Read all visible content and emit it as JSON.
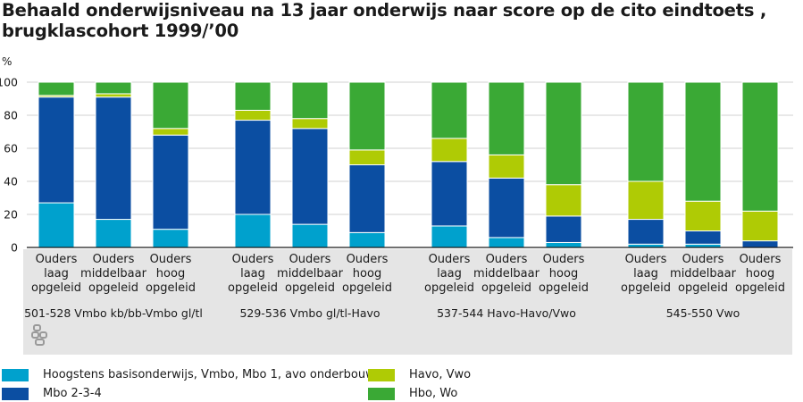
{
  "title_line1": "Behaald onderwijsniveau na 13 jaar onderwijs naar score op de cito eindtoets ,",
  "title_line2": "brugklascohort 1999/’00",
  "colors": {
    "basis": "#00a1cd",
    "mbo": "#0b4ea2",
    "havo": "#afcb05",
    "hbo": "#3aa935",
    "panel": "#e5e5e5"
  },
  "chart_data": {
    "type": "bar",
    "stacked": true,
    "ylabel": "%",
    "ylim": [
      0,
      100
    ],
    "yticks": [
      0,
      20,
      40,
      60,
      80,
      100
    ],
    "grid": true,
    "legend_position": "bottom",
    "groups": [
      {
        "label": "501-528 Vmbo kb/bb-Vmbo gl/tl",
        "categories": [
          "Ouders laag opgeleid",
          "Ouders middelbaar opgeleid",
          "Ouders hoog opgeleid"
        ],
        "stacks": [
          [
            27,
            64,
            1,
            8
          ],
          [
            17,
            74,
            2,
            7
          ],
          [
            11,
            57,
            4,
            28
          ]
        ]
      },
      {
        "label": "529-536 Vmbo gl/tl-Havo",
        "categories": [
          "Ouders laag opgeleid",
          "Ouders middelbaar opgeleid",
          "Ouders hoog opgeleid"
        ],
        "stacks": [
          [
            20,
            57,
            6,
            17
          ],
          [
            14,
            58,
            6,
            22
          ],
          [
            9,
            41,
            9,
            41
          ]
        ]
      },
      {
        "label": "537-544 Havo-Havo/Vwo",
        "categories": [
          "Ouders laag opgeleid",
          "Ouders middelbaar opgeleid",
          "Ouders hoog opgeleid"
        ],
        "stacks": [
          [
            13,
            39,
            14,
            34
          ],
          [
            6,
            36,
            14,
            44
          ],
          [
            3,
            16,
            19,
            62
          ]
        ]
      },
      {
        "label": "545-550 Vwo",
        "categories": [
          "Ouders laag opgeleid",
          "Ouders middelbaar opgeleid",
          "Ouders hoog opgeleid"
        ],
        "stacks": [
          [
            2,
            15,
            23,
            60
          ],
          [
            2,
            8,
            18,
            72
          ],
          [
            0,
            4,
            18,
            78
          ]
        ]
      }
    ],
    "series": [
      {
        "name": "Hoogstens basisonderwijs, Vmbo, Mbo 1, avo onderbouw",
        "color_key": "basis"
      },
      {
        "name": "Mbo 2-3-4",
        "color_key": "mbo"
      },
      {
        "name": "Havo, Vwo",
        "color_key": "havo"
      },
      {
        "name": "Hbo, Wo",
        "color_key": "hbo"
      }
    ]
  },
  "legend": {
    "items": [
      {
        "label": "Hoogstens basisonderwijs, Vmbo, Mbo 1, avo onderbouw",
        "color_key": "basis"
      },
      {
        "label": "Mbo 2-3-4",
        "color_key": "mbo"
      },
      {
        "label": "Havo, Vwo",
        "color_key": "havo"
      },
      {
        "label": "Hbo, Wo",
        "color_key": "hbo"
      }
    ]
  },
  "logo": {
    "name": "cbs-logo"
  }
}
